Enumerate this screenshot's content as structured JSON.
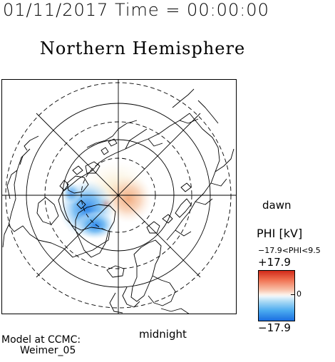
{
  "header": {
    "timestamp": "01/11/2017 Time = 00:00:00",
    "title": "Northern Hemisphere"
  },
  "map": {
    "projection": "polar-stereographic",
    "hemisphere": "north",
    "labels": {
      "dawn": "dawn",
      "midnight": "midnight"
    },
    "field": "electric potential",
    "colors": {
      "positive_max": "#d12a1a",
      "negative_max": "#1a6ee0",
      "neutral": "#ffffff",
      "coastline": "#000000"
    }
  },
  "colorbar": {
    "title": "PHI [kV]",
    "range_text": "−17.9<PHI<9.5",
    "max_label": "+17.9",
    "min_label": "−17.9",
    "zero_label": "0",
    "min": -17.9,
    "max": 17.9
  },
  "footer": {
    "model_line1": "Model at CCMC:",
    "model_line2": "Weimer_05"
  }
}
